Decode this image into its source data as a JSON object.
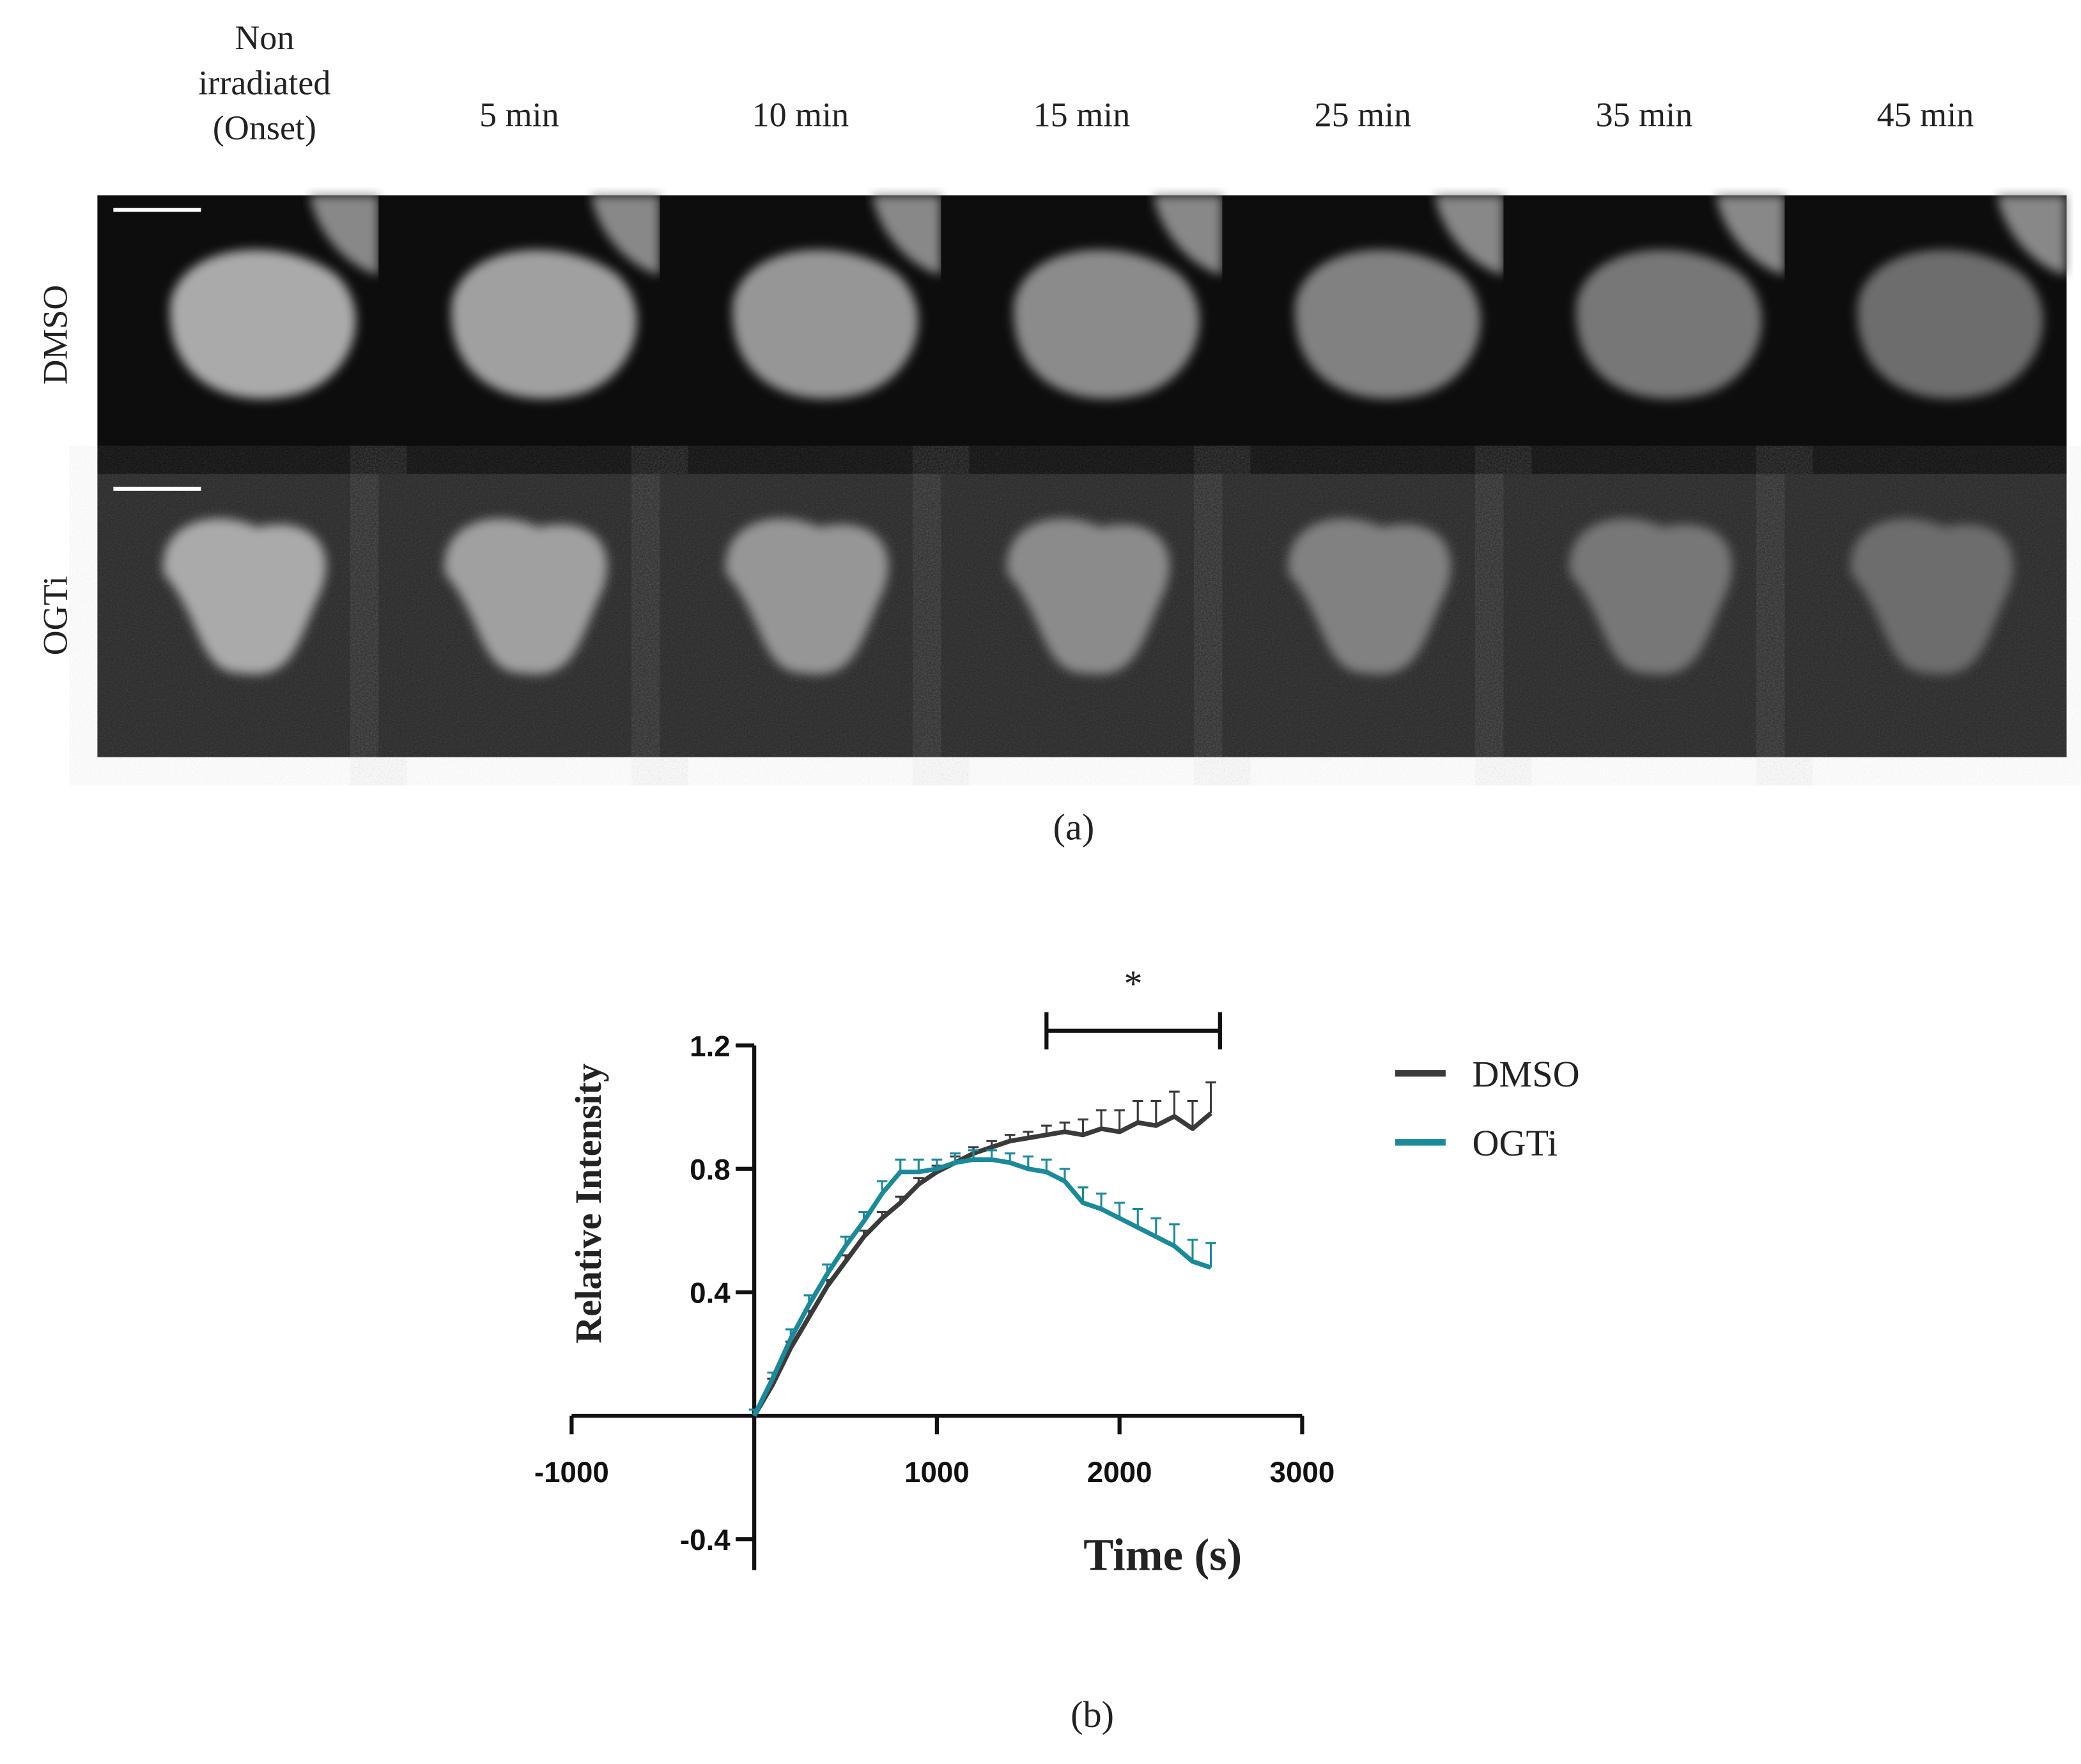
{
  "panel_a": {
    "columns": [
      "Non irradiated (Onset)",
      "5 min",
      "10 min",
      "15 min",
      "25 min",
      "35 min",
      "45 min"
    ],
    "rows": [
      "DMSO",
      "OGTi"
    ],
    "caption": "(a)"
  },
  "chart_data": {
    "type": "line",
    "caption": "(b)",
    "x_label": "Time (s)",
    "y_label": "Relative Intensity",
    "x": [
      0,
      100,
      200,
      300,
      400,
      500,
      600,
      700,
      800,
      900,
      1000,
      1100,
      1200,
      1300,
      1400,
      1500,
      1600,
      1700,
      1800,
      1900,
      2000,
      2100,
      2200,
      2300,
      2400,
      2500
    ],
    "series": [
      {
        "name": "DMSO",
        "color": "#3a3a3a",
        "values": [
          0,
          0.1,
          0.22,
          0.32,
          0.42,
          0.5,
          0.58,
          0.64,
          0.69,
          0.75,
          0.79,
          0.82,
          0.85,
          0.87,
          0.89,
          0.9,
          0.91,
          0.92,
          0.91,
          0.93,
          0.92,
          0.95,
          0.94,
          0.97,
          0.93,
          0.98
        ],
        "errors": [
          0.02,
          0.02,
          0.02,
          0.02,
          0.02,
          0.02,
          0.02,
          0.02,
          0.02,
          0.02,
          0.02,
          0.02,
          0.02,
          0.02,
          0.02,
          0.02,
          0.03,
          0.03,
          0.05,
          0.06,
          0.07,
          0.07,
          0.08,
          0.08,
          0.09,
          0.1
        ]
      },
      {
        "name": "OGTi",
        "color": "#1a8a9a",
        "values": [
          0,
          0.12,
          0.25,
          0.36,
          0.46,
          0.55,
          0.63,
          0.72,
          0.79,
          0.79,
          0.8,
          0.82,
          0.83,
          0.83,
          0.82,
          0.8,
          0.79,
          0.76,
          0.69,
          0.67,
          0.64,
          0.61,
          0.58,
          0.55,
          0.5,
          0.48
        ],
        "errors": [
          0.02,
          0.02,
          0.03,
          0.03,
          0.03,
          0.03,
          0.03,
          0.04,
          0.04,
          0.04,
          0.03,
          0.03,
          0.03,
          0.03,
          0.03,
          0.04,
          0.04,
          0.04,
          0.05,
          0.05,
          0.05,
          0.06,
          0.06,
          0.07,
          0.07,
          0.08
        ]
      }
    ],
    "xlim": [
      -1000,
      3000
    ],
    "xticks": [
      -1000,
      1000,
      2000,
      3000
    ],
    "ylim": [
      -0.5,
      1.2
    ],
    "yticks": [
      -0.4,
      0.4,
      0.8,
      1.2
    ],
    "significance": {
      "label": "*",
      "x": [
        1600,
        2550
      ]
    },
    "legend": "right"
  }
}
